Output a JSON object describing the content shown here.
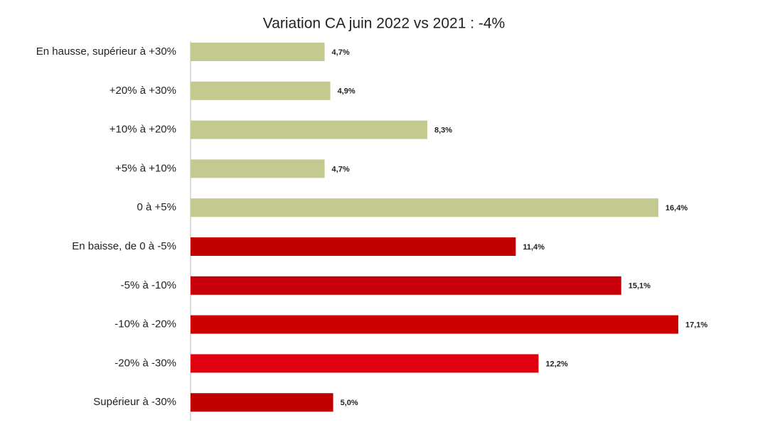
{
  "chart_data": {
    "type": "bar",
    "orientation": "horizontal",
    "title": "Variation CA juin 2022 vs 2021 : -4%",
    "categories": [
      "En hausse, supérieur à +30%",
      "+20% à +30%",
      "+10% à +20%",
      "+5% à +10%",
      "0 à +5%",
      "En baisse, de 0 à -5%",
      "-5% à -10%",
      "-10% à -20%",
      "-20% à -30%",
      "Supérieur à -30%"
    ],
    "values": [
      4.7,
      4.9,
      8.3,
      4.7,
      16.4,
      11.4,
      15.1,
      17.1,
      12.2,
      5.0
    ],
    "value_labels": [
      "4,7%",
      "4,9%",
      "8,3%",
      "4,7%",
      "16,4%",
      "11,4%",
      "15,1%",
      "17,1%",
      "12,2%",
      "5,0%"
    ],
    "colors": [
      "#c4c98f",
      "#c4c98f",
      "#c4c98f",
      "#c4c98f",
      "#c4c98f",
      "#c00000",
      "#c8000a",
      "#cc0000",
      "#e00010",
      "#c00000"
    ]
  }
}
